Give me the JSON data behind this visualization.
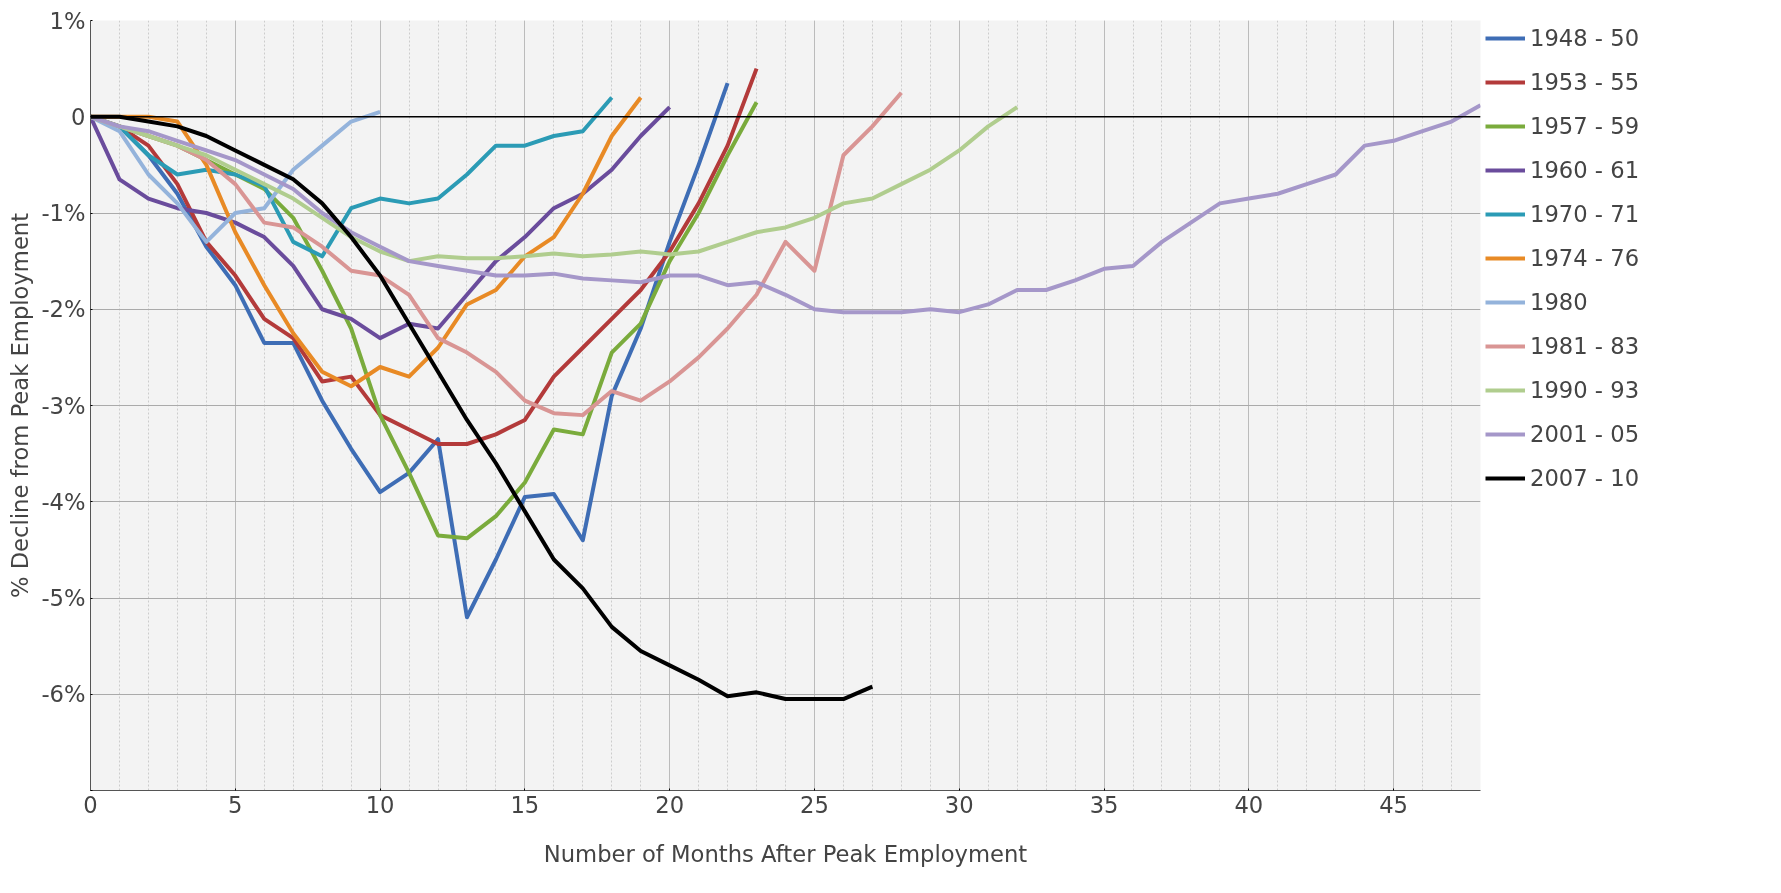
{
  "chart_data": {
    "type": "line",
    "xlabel": "Number of Months After Peak Employment",
    "ylabel": "% Decline from Peak Employment",
    "x": [
      0,
      1,
      2,
      3,
      4,
      5,
      6,
      7,
      8,
      9,
      10,
      11,
      12,
      13,
      14,
      15,
      16,
      17,
      18,
      19,
      20,
      21,
      22,
      23,
      24,
      25,
      26,
      27,
      28,
      29,
      30,
      31,
      32,
      33,
      34,
      35,
      36,
      37,
      38,
      39,
      40,
      41,
      42,
      43,
      44,
      45,
      46,
      47,
      48
    ],
    "xlim": [
      0,
      48
    ],
    "xticks": [
      0,
      5,
      10,
      15,
      20,
      25,
      30,
      35,
      40,
      45
    ],
    "ylim": [
      -7,
      1
    ],
    "yticks": [
      {
        "value": 1,
        "label": "1%"
      },
      0,
      {
        "value": -1,
        "label": "-1%"
      },
      {
        "value": -2,
        "label": "-2%"
      },
      {
        "value": -3,
        "label": "-3%"
      },
      {
        "value": -4,
        "label": "-4%"
      },
      {
        "value": -5,
        "label": "-5%"
      },
      {
        "value": -6,
        "label": "-6%"
      },
      {
        "value": -7,
        "label": null
      }
    ],
    "grid": true,
    "legend": "right",
    "line_style": "solid",
    "marker": "none",
    "ref_lines": [
      {
        "axis": "y",
        "value": 0,
        "color": "#000000"
      }
    ],
    "series": [
      {
        "name": "1948 - 50",
        "color": "#3e6db5",
        "x": [
          0,
          1,
          2,
          3,
          4,
          5,
          6,
          7,
          8,
          9,
          10,
          11,
          12,
          13,
          14,
          15,
          16,
          17,
          18,
          19,
          20,
          21,
          22
        ],
        "values": [
          0,
          -0.1,
          -0.4,
          -0.8,
          -1.35,
          -1.75,
          -2.35,
          -2.35,
          -2.95,
          -3.45,
          -3.9,
          -3.7,
          -3.35,
          -5.2,
          -4.6,
          -3.95,
          -3.92,
          -4.4,
          -2.9,
          -2.2,
          -1.3,
          -0.5,
          0.35
        ]
      },
      {
        "name": "1953 - 55",
        "color": "#b33a3a",
        "x": [
          0,
          1,
          2,
          3,
          4,
          5,
          6,
          7,
          8,
          9,
          10,
          11,
          12,
          13,
          14,
          15,
          16,
          17,
          18,
          19,
          20,
          21,
          22,
          23
        ],
        "values": [
          0,
          -0.1,
          -0.3,
          -0.7,
          -1.3,
          -1.65,
          -2.1,
          -2.3,
          -2.75,
          -2.7,
          -3.1,
          -3.25,
          -3.4,
          -3.4,
          -3.3,
          -3.15,
          -2.7,
          -2.4,
          -2.1,
          -1.8,
          -1.4,
          -0.9,
          -0.3,
          0.5
        ]
      },
      {
        "name": "1957 - 59",
        "color": "#7aab3c",
        "x": [
          0,
          1,
          2,
          3,
          4,
          5,
          6,
          7,
          8,
          9,
          10,
          11,
          12,
          13,
          14,
          15,
          16,
          17,
          18,
          19,
          20,
          21,
          22,
          23
        ],
        "values": [
          0,
          -0.1,
          -0.2,
          -0.3,
          -0.45,
          -0.6,
          -0.75,
          -1.05,
          -1.6,
          -2.2,
          -3.1,
          -3.7,
          -4.35,
          -4.38,
          -4.15,
          -3.8,
          -3.25,
          -3.3,
          -2.45,
          -2.15,
          -1.5,
          -1.0,
          -0.4,
          0.15
        ]
      },
      {
        "name": "1960 - 61",
        "color": "#6a4c9c",
        "x": [
          0,
          1,
          2,
          3,
          4,
          5,
          6,
          7,
          8,
          9,
          10,
          11,
          12,
          13,
          14,
          15,
          16,
          17,
          18,
          19,
          20
        ],
        "values": [
          0,
          -0.65,
          -0.85,
          -0.95,
          -1.0,
          -1.1,
          -1.25,
          -1.55,
          -2.0,
          -2.1,
          -2.3,
          -2.15,
          -2.2,
          -1.85,
          -1.5,
          -1.25,
          -0.95,
          -0.8,
          -0.55,
          -0.2,
          0.1
        ]
      },
      {
        "name": "1970 - 71",
        "color": "#2b9bb5",
        "x": [
          0,
          1,
          2,
          3,
          4,
          5,
          6,
          7,
          8,
          9,
          10,
          11,
          12,
          13,
          14,
          15,
          16,
          17,
          18
        ],
        "values": [
          0,
          -0.1,
          -0.4,
          -0.6,
          -0.55,
          -0.6,
          -0.72,
          -1.3,
          -1.45,
          -0.95,
          -0.85,
          -0.9,
          -0.85,
          -0.6,
          -0.3,
          -0.3,
          -0.2,
          -0.15,
          0.2
        ]
      },
      {
        "name": "1974 - 76",
        "color": "#e88a25",
        "x": [
          0,
          1,
          2,
          3,
          4,
          5,
          6,
          7,
          8,
          9,
          10,
          11,
          12,
          13,
          14,
          15,
          16,
          17,
          18,
          19
        ],
        "values": [
          0,
          0,
          0,
          -0.05,
          -0.5,
          -1.2,
          -1.75,
          -2.25,
          -2.65,
          -2.8,
          -2.6,
          -2.7,
          -2.4,
          -1.95,
          -1.8,
          -1.45,
          -1.25,
          -0.8,
          -0.2,
          0.2
        ]
      },
      {
        "name": "1980",
        "color": "#94b3db",
        "x": [
          0,
          1,
          2,
          3,
          4,
          5,
          6,
          7,
          8,
          9,
          10
        ],
        "values": [
          0,
          -0.15,
          -0.6,
          -0.9,
          -1.3,
          -1.0,
          -0.95,
          -0.55,
          -0.3,
          -0.05,
          0.05
        ]
      },
      {
        "name": "1981 - 83",
        "color": "#d99594",
        "x": [
          0,
          1,
          2,
          3,
          4,
          5,
          6,
          7,
          8,
          9,
          10,
          11,
          12,
          13,
          14,
          15,
          16,
          17,
          18,
          19,
          20,
          21,
          22,
          23,
          24,
          25,
          26,
          27,
          28
        ],
        "values": [
          0,
          -0.1,
          -0.2,
          -0.3,
          -0.45,
          -0.7,
          -1.1,
          -1.15,
          -1.35,
          -1.6,
          -1.65,
          -1.85,
          -2.3,
          -2.45,
          -2.65,
          -2.95,
          -3.08,
          -3.1,
          -2.85,
          -2.95,
          -2.75,
          -2.5,
          -2.2,
          -1.85,
          -1.3,
          -1.6,
          -0.4,
          -0.1,
          0.25
        ]
      },
      {
        "name": "1990 - 93",
        "color": "#b0cd8e",
        "x": [
          0,
          1,
          2,
          3,
          4,
          5,
          6,
          7,
          8,
          9,
          10,
          11,
          12,
          13,
          14,
          15,
          16,
          17,
          18,
          19,
          20,
          21,
          22,
          23,
          24,
          25,
          26,
          27,
          28,
          29,
          30,
          31,
          32
        ],
        "values": [
          0,
          -0.1,
          -0.2,
          -0.3,
          -0.4,
          -0.55,
          -0.7,
          -0.85,
          -1.05,
          -1.25,
          -1.4,
          -1.5,
          -1.45,
          -1.47,
          -1.47,
          -1.45,
          -1.42,
          -1.45,
          -1.43,
          -1.4,
          -1.43,
          -1.4,
          -1.3,
          -1.2,
          -1.15,
          -1.05,
          -0.9,
          -0.85,
          -0.7,
          -0.55,
          -0.35,
          -0.1,
          0.1
        ]
      },
      {
        "name": "2001 - 05",
        "color": "#a597c9",
        "values": [
          0,
          -0.1,
          -0.15,
          -0.25,
          -0.35,
          -0.45,
          -0.6,
          -0.75,
          -1.0,
          -1.2,
          -1.35,
          -1.5,
          -1.55,
          -1.6,
          -1.65,
          -1.65,
          -1.63,
          -1.68,
          -1.7,
          -1.72,
          -1.65,
          -1.65,
          -1.75,
          -1.72,
          -1.85,
          -2.0,
          -2.03,
          -2.03,
          -2.03,
          -2.0,
          -2.03,
          -1.95,
          -1.8,
          -1.8,
          -1.7,
          -1.58,
          -1.55,
          -1.3,
          -1.1,
          -0.9,
          -0.85,
          -0.8,
          -0.7,
          -0.6,
          -0.3,
          -0.25,
          -0.15,
          -0.05,
          0.12
        ]
      },
      {
        "name": "2007 - 10",
        "color": "#000000",
        "x": [
          0,
          1,
          2,
          3,
          4,
          5,
          6,
          7,
          8,
          9,
          10,
          11,
          12,
          13,
          14,
          15,
          16,
          17,
          18,
          19,
          20,
          21,
          22,
          23,
          24,
          25,
          26,
          27
        ],
        "values": [
          0,
          0,
          -0.05,
          -0.1,
          -0.2,
          -0.35,
          -0.5,
          -0.65,
          -0.9,
          -1.25,
          -1.65,
          -2.15,
          -2.65,
          -3.15,
          -3.6,
          -4.1,
          -4.6,
          -4.9,
          -5.3,
          -5.55,
          -5.7,
          -5.85,
          -6.02,
          -5.98,
          -6.05,
          -6.05,
          -6.05,
          -5.92
        ]
      }
    ]
  }
}
